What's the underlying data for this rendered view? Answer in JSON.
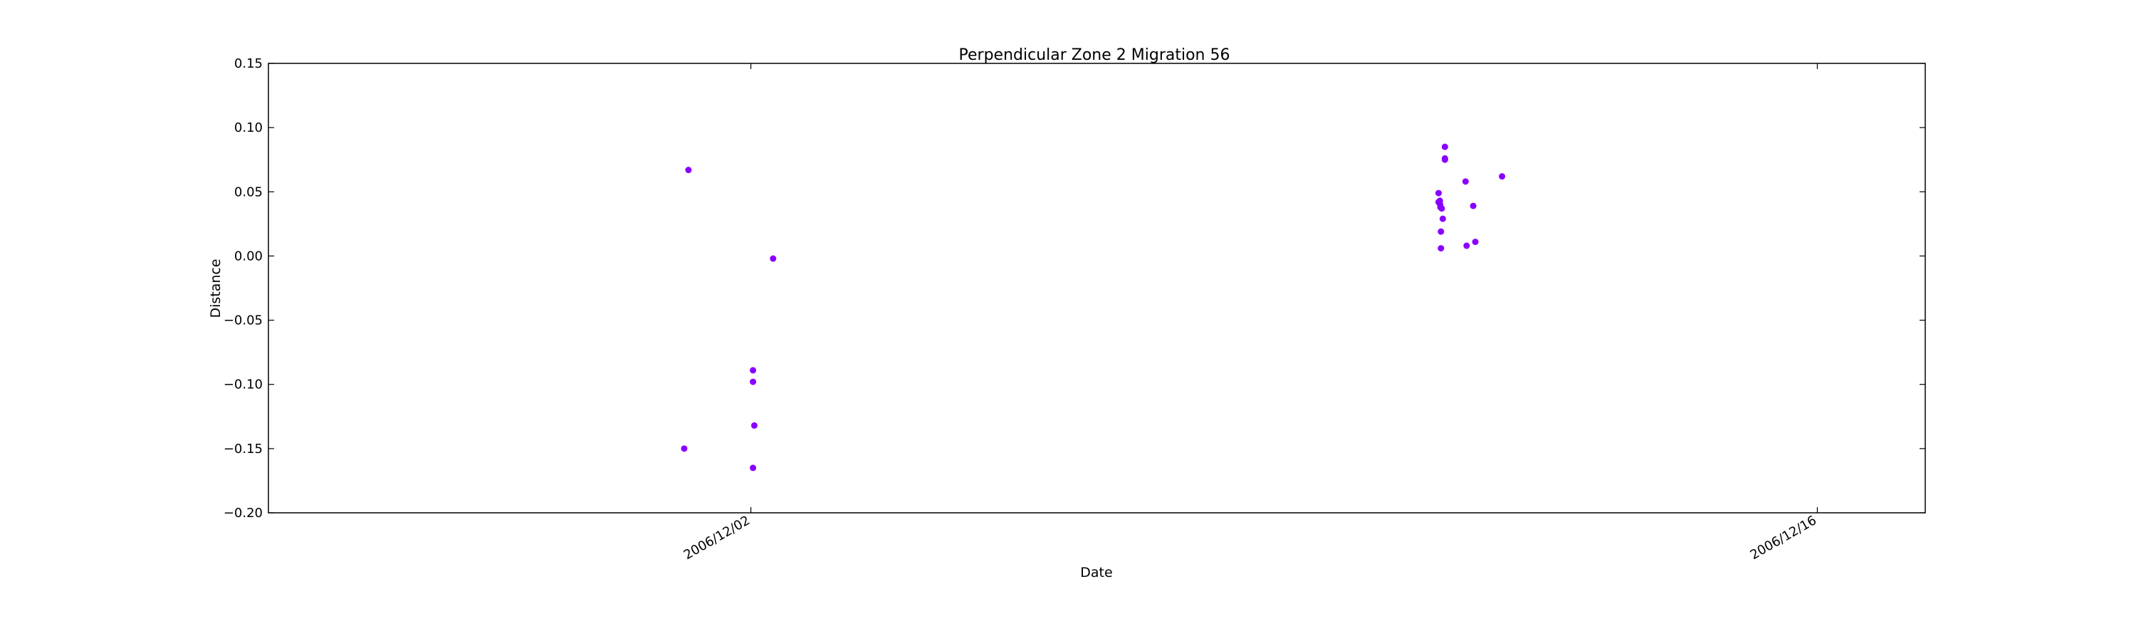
{
  "chart_data": {
    "type": "scatter",
    "title": "Perpendicular Zone 2 Migration 56",
    "xlabel": "Date",
    "ylabel": "Distance",
    "x_axis_type": "date",
    "xlim": [
      "2006-11-25T16:00",
      "2006-12-17T10:00"
    ],
    "ylim": [
      -0.2,
      0.15
    ],
    "x_ticks": [
      {
        "date": "2006-12-02T00:00",
        "label": "2006/12/02"
      },
      {
        "date": "2006-12-16T00:00",
        "label": "2006/12/16"
      }
    ],
    "y_ticks": [
      {
        "value": 0.15,
        "label": "0.15"
      },
      {
        "value": 0.1,
        "label": "0.10"
      },
      {
        "value": 0.05,
        "label": "0.05"
      },
      {
        "value": 0.0,
        "label": "0.00"
      },
      {
        "value": -0.05,
        "label": "−0.05"
      },
      {
        "value": -0.1,
        "label": "−0.10"
      },
      {
        "value": -0.15,
        "label": "−0.15"
      },
      {
        "value": -0.2,
        "label": "−0.20"
      }
    ],
    "grid": false,
    "marker_color": "#8a00ff",
    "points": [
      {
        "x": "2006-12-01T04:20",
        "y": 0.067
      },
      {
        "x": "2006-12-01T03:00",
        "y": -0.15
      },
      {
        "x": "2006-12-02T00:40",
        "y": -0.089
      },
      {
        "x": "2006-12-02T00:40",
        "y": -0.098
      },
      {
        "x": "2006-12-02T01:05",
        "y": -0.132
      },
      {
        "x": "2006-12-02T00:40",
        "y": -0.165
      },
      {
        "x": "2006-12-02T07:00",
        "y": -0.002
      },
      {
        "x": "2006-12-11T02:40",
        "y": 0.085
      },
      {
        "x": "2006-12-11T02:40",
        "y": 0.076
      },
      {
        "x": "2006-12-11T02:40",
        "y": 0.075
      },
      {
        "x": "2006-12-11T00:40",
        "y": 0.049
      },
      {
        "x": "2006-12-11T01:05",
        "y": 0.043
      },
      {
        "x": "2006-12-11T00:40",
        "y": 0.042
      },
      {
        "x": "2006-12-11T01:10",
        "y": 0.04
      },
      {
        "x": "2006-12-11T01:40",
        "y": 0.037
      },
      {
        "x": "2006-12-11T01:15",
        "y": 0.038
      },
      {
        "x": "2006-12-11T02:00",
        "y": 0.029
      },
      {
        "x": "2006-12-11T01:25",
        "y": 0.019
      },
      {
        "x": "2006-12-11T01:25",
        "y": 0.006
      },
      {
        "x": "2006-12-11T09:10",
        "y": 0.058
      },
      {
        "x": "2006-12-11T11:35",
        "y": 0.039
      },
      {
        "x": "2006-12-11T09:30",
        "y": 0.008
      },
      {
        "x": "2006-12-11T12:15",
        "y": 0.011
      },
      {
        "x": "2006-12-11T20:40",
        "y": 0.062
      }
    ]
  }
}
